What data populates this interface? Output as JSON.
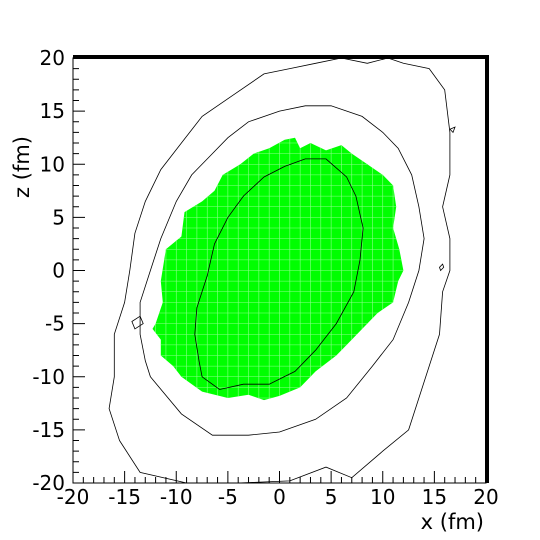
{
  "chart_data": {
    "type": "contour",
    "title": "",
    "xlabel": "x (fm)",
    "ylabel": "z (fm)",
    "xlim": [
      -20,
      20
    ],
    "ylim": [
      -20,
      20
    ],
    "xticks": [
      -20,
      -15,
      -10,
      -5,
      0,
      5,
      10,
      15,
      20
    ],
    "yticks": [
      -20,
      -15,
      -10,
      -5,
      0,
      5,
      10,
      15,
      20
    ],
    "grid": false,
    "colors": {
      "fill": "#00ff00",
      "contour": "#000000",
      "fill_grid": "#8cff8c"
    },
    "filled_region": {
      "name": "",
      "points": [
        [
          -12,
          -5
        ],
        [
          -11.3,
          -3
        ],
        [
          -11.5,
          -1
        ],
        [
          -11,
          2
        ],
        [
          -9.5,
          3.2
        ],
        [
          -9.2,
          5.5
        ],
        [
          -7.5,
          6.5
        ],
        [
          -6.3,
          7.5
        ],
        [
          -5.5,
          9
        ],
        [
          -3.8,
          10
        ],
        [
          -2.5,
          11
        ],
        [
          -1,
          11.5
        ],
        [
          0.5,
          12.3
        ],
        [
          1.5,
          12.5
        ],
        [
          2,
          11.5
        ],
        [
          3,
          12
        ],
        [
          4.5,
          11.3
        ],
        [
          6,
          11.8
        ],
        [
          7,
          11
        ],
        [
          8.5,
          10
        ],
        [
          10,
          9
        ],
        [
          11,
          8
        ],
        [
          11.3,
          6
        ],
        [
          11,
          4
        ],
        [
          11.6,
          2
        ],
        [
          12,
          0
        ],
        [
          11.5,
          -1
        ],
        [
          11,
          -3
        ],
        [
          9.5,
          -4
        ],
        [
          8.5,
          -5
        ],
        [
          7,
          -6.5
        ],
        [
          5.5,
          -8
        ],
        [
          3.5,
          -9.5
        ],
        [
          2,
          -11
        ],
        [
          0,
          -11.8
        ],
        [
          -1.5,
          -12.2
        ],
        [
          -3,
          -11.7
        ],
        [
          -5,
          -12
        ],
        [
          -7.5,
          -11.4
        ],
        [
          -9.5,
          -10
        ],
        [
          -10.3,
          -9
        ],
        [
          -11.5,
          -8
        ],
        [
          -11.5,
          -6.5
        ],
        [
          -12.3,
          -5.5
        ]
      ]
    },
    "contours": [
      {
        "level": "inner",
        "points": [
          [
            -7.5,
            -10
          ],
          [
            -5.8,
            -11.2
          ],
          [
            -3.5,
            -10.7
          ],
          [
            -1,
            -10.7
          ],
          [
            1.5,
            -9.5
          ],
          [
            3.5,
            -7.5
          ],
          [
            5.5,
            -5
          ],
          [
            7.2,
            -2
          ],
          [
            7.8,
            1
          ],
          [
            8.1,
            4
          ],
          [
            7.4,
            7
          ],
          [
            6.5,
            8.8
          ],
          [
            4.5,
            10.5
          ],
          [
            2.5,
            10.5
          ],
          [
            0.5,
            9.8
          ],
          [
            -1.5,
            8.8
          ],
          [
            -3.5,
            7
          ],
          [
            -5,
            5
          ],
          [
            -6.3,
            2.5
          ],
          [
            -7,
            -0.5
          ],
          [
            -8,
            -3.5
          ],
          [
            -8.2,
            -6
          ],
          [
            -7.8,
            -8.5
          ]
        ]
      },
      {
        "level": "middle",
        "points": [
          [
            -12.5,
            -10
          ],
          [
            -9.5,
            -13.5
          ],
          [
            -6.5,
            -15.5
          ],
          [
            -3,
            -15.5
          ],
          [
            0,
            -15.2
          ],
          [
            3.5,
            -14
          ],
          [
            6.5,
            -12
          ],
          [
            9,
            -9
          ],
          [
            11,
            -6.5
          ],
          [
            12.5,
            -3
          ],
          [
            13.5,
            0
          ],
          [
            14,
            3
          ],
          [
            13.5,
            6
          ],
          [
            12.8,
            9
          ],
          [
            11.5,
            11.5
          ],
          [
            10,
            13
          ],
          [
            8,
            14.5
          ],
          [
            5,
            15.5
          ],
          [
            2.5,
            15.5
          ],
          [
            0,
            15
          ],
          [
            -3,
            14
          ],
          [
            -5,
            12.5
          ],
          [
            -6.5,
            11
          ],
          [
            -8.5,
            9
          ],
          [
            -10,
            6.5
          ],
          [
            -11.5,
            3
          ],
          [
            -12.5,
            0
          ],
          [
            -13.5,
            -3
          ],
          [
            -13.5,
            -6
          ],
          [
            -13,
            -8.5
          ]
        ]
      },
      {
        "level": "outer",
        "points": [
          [
            -15.5,
            -16
          ],
          [
            -13.5,
            -19
          ],
          [
            -9,
            -20
          ],
          [
            -4,
            -20
          ],
          [
            1,
            -19.8
          ],
          [
            4.5,
            -18.5
          ],
          [
            7,
            -19.5
          ],
          [
            10,
            -17
          ],
          [
            12.5,
            -15
          ],
          [
            13.5,
            -12
          ],
          [
            14.5,
            -9
          ],
          [
            15.5,
            -6
          ],
          [
            15.8,
            -2
          ],
          [
            16.5,
            0
          ],
          [
            16.5,
            3
          ],
          [
            15.8,
            6
          ],
          [
            16.5,
            9
          ],
          [
            16.5,
            13
          ],
          [
            16,
            17
          ],
          [
            14.5,
            19
          ],
          [
            12,
            19.5
          ],
          [
            10.5,
            20
          ],
          [
            8.5,
            19.5
          ],
          [
            6,
            20
          ],
          [
            3.5,
            19.5
          ],
          [
            1,
            19
          ],
          [
            -1.5,
            18.5
          ],
          [
            -4.5,
            16.5
          ],
          [
            -7.5,
            14.5
          ],
          [
            -9.5,
            12
          ],
          [
            -11.5,
            9.5
          ],
          [
            -13,
            6.5
          ],
          [
            -14,
            3.5
          ],
          [
            -14.5,
            0
          ],
          [
            -15,
            -3
          ],
          [
            -16,
            -6
          ],
          [
            -16,
            -10
          ],
          [
            -16.5,
            -13
          ]
        ]
      }
    ],
    "islands": [
      {
        "points": [
          [
            -14.3,
            -4.8
          ],
          [
            -13.5,
            -4.3
          ],
          [
            -13.2,
            -5
          ],
          [
            -14,
            -5.5
          ]
        ]
      },
      {
        "points": [
          [
            15.5,
            0.3
          ],
          [
            15.8,
            0.6
          ],
          [
            15.9,
            0.3
          ],
          [
            15.6,
            0.0
          ]
        ]
      },
      {
        "points": [
          [
            16.5,
            13.3
          ],
          [
            17,
            13.5
          ],
          [
            16.8,
            13.0
          ]
        ]
      }
    ]
  }
}
